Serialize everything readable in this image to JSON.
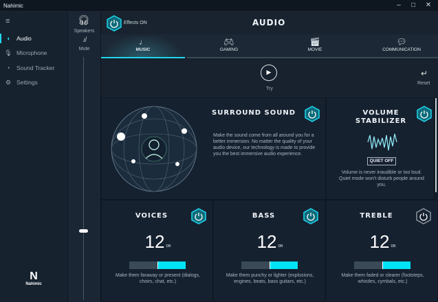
{
  "window": {
    "title": "Nahimic",
    "controls": [
      "minimize",
      "maximize",
      "close"
    ]
  },
  "sidebar": {
    "items": [
      {
        "label": "Audio",
        "icon": "speaker-icon",
        "active": true
      },
      {
        "label": "Microphone",
        "icon": "microphone-icon"
      },
      {
        "label": "Sound Tracker",
        "icon": "radar-icon"
      },
      {
        "label": "Settings",
        "icon": "gear-icon"
      }
    ],
    "logo": "Nahimic"
  },
  "volume": {
    "device": "Speakers",
    "mute_label": "Mute",
    "level": 0.25
  },
  "header": {
    "effects_label": "Effects ON",
    "title": "AUDIO"
  },
  "tabs": [
    {
      "label": "MUSIC",
      "active": true
    },
    {
      "label": "GAMING"
    },
    {
      "label": "MOVIE"
    },
    {
      "label": "COMMUNICATION"
    }
  ],
  "try_label": "Try",
  "reset_label": "Reset",
  "surround": {
    "title": "SURROUND SOUND",
    "on": true,
    "desc": "Make the sound come from all around you for a better immersion. No matter the quality of your audio device, our technology is made to provide you the best immersive audio experience."
  },
  "stabilizer": {
    "title1": "VOLUME",
    "title2": "STABILIZER",
    "on": true,
    "button": "QUIET OFF",
    "desc": "Volume is never  inaudible or too loud. Quiet mode won't disturb people around you."
  },
  "eq": [
    {
      "title": "VOICES",
      "value": "12",
      "unit": "DB",
      "on": true,
      "level": 0.5,
      "desc": "Make them faraway or present (dialogs, choirs, chat, etc.)"
    },
    {
      "title": "BASS",
      "value": "12",
      "unit": "DB",
      "on": true,
      "level": 0.5,
      "desc": "Make them punchy or lighter (explosions, engines, beats, bass guitars, etc.)"
    },
    {
      "title": "TREBLE",
      "value": "12",
      "unit": "DB",
      "on": false,
      "level": 0.5,
      "desc": "Make them faded or clearer (footsteps, whistles, cymbals, etc.)"
    }
  ],
  "colors": {
    "accent": "#00e3f6",
    "bg": "#131d29"
  }
}
